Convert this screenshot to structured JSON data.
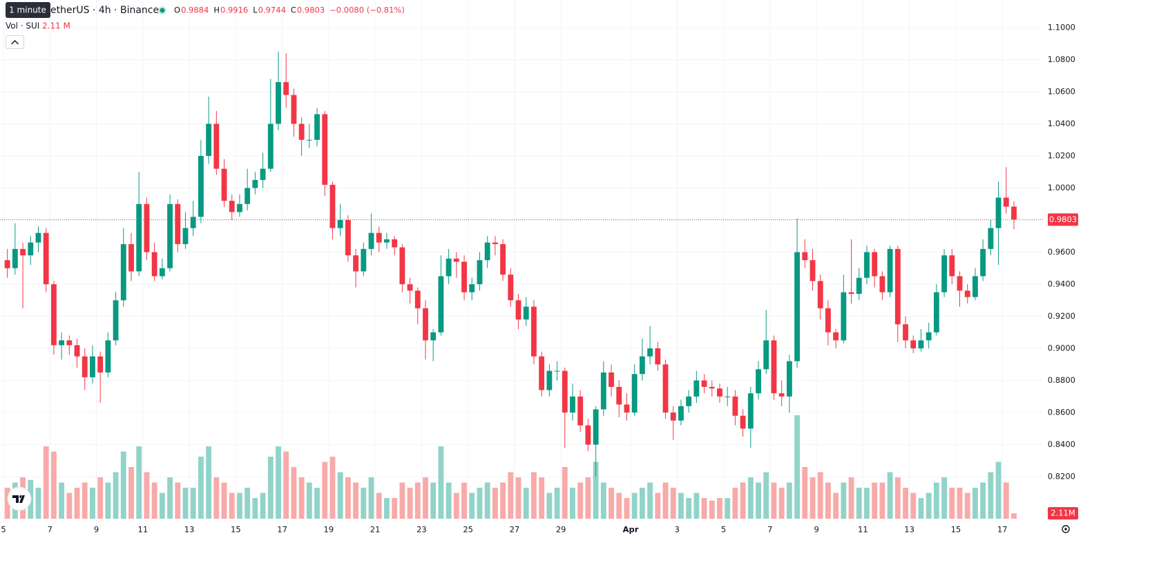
{
  "chart_data": {
    "type": "candlestick",
    "title": "etherUS · 4h · Binance",
    "tooltip": "1 minute",
    "ohlc_legend": [
      "O",
      "0.9884",
      "H",
      "0.9916",
      "L",
      "0.9744",
      "C",
      "0.9803",
      "−0.0080 (−0.81%)"
    ],
    "volume_title": "Vol · SUI",
    "volume_title_value": "2.11 M",
    "up_color": "#089981",
    "down_color": "#f23645",
    "volume_up_color": "#92d3c9",
    "volume_down_color": "#f8aaa9",
    "grid": true,
    "last_price": 0.9803,
    "last_volume_label": "2.11M",
    "xlim": [
      -0.95,
      133.75
    ],
    "xticks": [
      {
        "value": -0.5,
        "label": "5"
      },
      {
        "value": 5.5,
        "label": "7"
      },
      {
        "value": 11.5,
        "label": "9"
      },
      {
        "value": 17.5,
        "label": "11"
      },
      {
        "value": 23.5,
        "label": "13"
      },
      {
        "value": 29.5,
        "label": "15"
      },
      {
        "value": 35.5,
        "label": "17"
      },
      {
        "value": 41.5,
        "label": "19"
      },
      {
        "value": 47.5,
        "label": "21"
      },
      {
        "value": 53.5,
        "label": "23"
      },
      {
        "value": 59.5,
        "label": "25"
      },
      {
        "value": 65.5,
        "label": "27"
      },
      {
        "value": 71.5,
        "label": "29"
      },
      {
        "value": 80.5,
        "label": "Apr"
      },
      {
        "value": 86.5,
        "label": "3"
      },
      {
        "value": 92.5,
        "label": "5"
      },
      {
        "value": 98.5,
        "label": "7"
      },
      {
        "value": 104.5,
        "label": "9"
      },
      {
        "value": 110.5,
        "label": "11"
      },
      {
        "value": 116.5,
        "label": "13"
      },
      {
        "value": 122.5,
        "label": "15"
      },
      {
        "value": 128.5,
        "label": "17"
      }
    ],
    "ylim": [
      0.7925,
      1.1172
    ],
    "yticks": [
      {
        "value": 0.82,
        "label": "0.8200"
      },
      {
        "value": 0.84,
        "label": "0.8400"
      },
      {
        "value": 0.86,
        "label": "0.8600"
      },
      {
        "value": 0.88,
        "label": "0.8800"
      },
      {
        "value": 0.9,
        "label": "0.9000"
      },
      {
        "value": 0.92,
        "label": "0.9200"
      },
      {
        "value": 0.94,
        "label": "0.9400"
      },
      {
        "value": 0.96,
        "label": "0.9600"
      },
      {
        "value": 0.98,
        "label": "0.9800"
      },
      {
        "value": 1.0,
        "label": "1.0000"
      },
      {
        "value": 1.02,
        "label": "1.0200"
      },
      {
        "value": 1.04,
        "label": "1.0400"
      },
      {
        "value": 1.06,
        "label": "1.0600"
      },
      {
        "value": 1.08,
        "label": "1.0800"
      },
      {
        "value": 1.1,
        "label": "1.1000"
      }
    ],
    "volume_lim": [
      0,
      48
    ],
    "candles": [
      [
        0.955,
        0.962,
        0.944,
        0.95
      ],
      [
        0.95,
        0.978,
        0.946,
        0.962
      ],
      [
        0.962,
        0.966,
        0.925,
        0.958
      ],
      [
        0.958,
        0.97,
        0.952,
        0.966
      ],
      [
        0.966,
        0.976,
        0.96,
        0.972
      ],
      [
        0.972,
        0.975,
        0.935,
        0.94
      ],
      [
        0.94,
        0.942,
        0.896,
        0.902
      ],
      [
        0.902,
        0.91,
        0.893,
        0.905
      ],
      [
        0.905,
        0.908,
        0.896,
        0.902
      ],
      [
        0.902,
        0.906,
        0.888,
        0.895
      ],
      [
        0.895,
        0.9,
        0.874,
        0.882
      ],
      [
        0.882,
        0.902,
        0.878,
        0.895
      ],
      [
        0.895,
        0.898,
        0.866,
        0.885
      ],
      [
        0.885,
        0.91,
        0.882,
        0.905
      ],
      [
        0.905,
        0.935,
        0.902,
        0.93
      ],
      [
        0.93,
        0.975,
        0.926,
        0.965
      ],
      [
        0.965,
        0.972,
        0.942,
        0.948
      ],
      [
        0.948,
        1.01,
        0.945,
        0.99
      ],
      [
        0.99,
        0.994,
        0.955,
        0.96
      ],
      [
        0.96,
        0.966,
        0.942,
        0.945
      ],
      [
        0.945,
        0.956,
        0.943,
        0.95
      ],
      [
        0.95,
        0.996,
        0.948,
        0.99
      ],
      [
        0.99,
        0.993,
        0.96,
        0.965
      ],
      [
        0.965,
        0.985,
        0.962,
        0.975
      ],
      [
        0.975,
        0.992,
        0.97,
        0.982
      ],
      [
        0.982,
        1.03,
        0.978,
        1.02
      ],
      [
        1.02,
        1.057,
        1.015,
        1.04
      ],
      [
        1.04,
        1.048,
        1.008,
        1.012
      ],
      [
        1.012,
        1.018,
        0.988,
        0.992
      ],
      [
        0.992,
        0.996,
        0.98,
        0.985
      ],
      [
        0.985,
        0.996,
        0.982,
        0.99
      ],
      [
        0.99,
        1.012,
        0.986,
        1.0
      ],
      [
        1.0,
        1.01,
        0.996,
        1.005
      ],
      [
        1.005,
        1.022,
        1.0,
        1.012
      ],
      [
        1.012,
        1.068,
        1.01,
        1.04
      ],
      [
        1.04,
        1.085,
        1.036,
        1.066
      ],
      [
        1.066,
        1.084,
        1.05,
        1.058
      ],
      [
        1.058,
        1.062,
        1.032,
        1.04
      ],
      [
        1.04,
        1.044,
        1.02,
        1.03
      ],
      [
        1.03,
        1.04,
        1.025,
        1.03
      ],
      [
        1.03,
        1.05,
        1.026,
        1.046
      ],
      [
        1.046,
        1.048,
        0.995,
        1.002
      ],
      [
        1.002,
        1.004,
        0.968,
        0.975
      ],
      [
        0.975,
        0.99,
        0.97,
        0.98
      ],
      [
        0.98,
        0.983,
        0.954,
        0.958
      ],
      [
        0.958,
        0.962,
        0.938,
        0.948
      ],
      [
        0.948,
        0.966,
        0.945,
        0.962
      ],
      [
        0.962,
        0.984,
        0.958,
        0.972
      ],
      [
        0.972,
        0.976,
        0.96,
        0.966
      ],
      [
        0.966,
        0.972,
        0.962,
        0.968
      ],
      [
        0.968,
        0.97,
        0.958,
        0.963
      ],
      [
        0.963,
        0.965,
        0.935,
        0.94
      ],
      [
        0.94,
        0.944,
        0.928,
        0.936
      ],
      [
        0.936,
        0.938,
        0.915,
        0.925
      ],
      [
        0.925,
        0.93,
        0.893,
        0.905
      ],
      [
        0.905,
        0.912,
        0.892,
        0.91
      ],
      [
        0.91,
        0.958,
        0.908,
        0.945
      ],
      [
        0.945,
        0.962,
        0.94,
        0.956
      ],
      [
        0.956,
        0.96,
        0.944,
        0.954
      ],
      [
        0.954,
        0.958,
        0.93,
        0.935
      ],
      [
        0.935,
        0.944,
        0.93,
        0.94
      ],
      [
        0.94,
        0.96,
        0.936,
        0.955
      ],
      [
        0.955,
        0.97,
        0.95,
        0.966
      ],
      [
        0.966,
        0.97,
        0.958,
        0.965
      ],
      [
        0.965,
        0.968,
        0.942,
        0.946
      ],
      [
        0.946,
        0.95,
        0.926,
        0.93
      ],
      [
        0.93,
        0.934,
        0.912,
        0.918
      ],
      [
        0.918,
        0.932,
        0.914,
        0.926
      ],
      [
        0.926,
        0.93,
        0.89,
        0.895
      ],
      [
        0.895,
        0.898,
        0.87,
        0.874
      ],
      [
        0.874,
        0.89,
        0.87,
        0.886
      ],
      [
        0.886,
        0.892,
        0.88,
        0.886
      ],
      [
        0.886,
        0.888,
        0.838,
        0.86
      ],
      [
        0.86,
        0.878,
        0.855,
        0.87
      ],
      [
        0.87,
        0.874,
        0.848,
        0.852
      ],
      [
        0.852,
        0.856,
        0.836,
        0.84
      ],
      [
        0.84,
        0.864,
        0.82,
        0.862
      ],
      [
        0.862,
        0.892,
        0.858,
        0.885
      ],
      [
        0.885,
        0.89,
        0.87,
        0.876
      ],
      [
        0.876,
        0.88,
        0.857,
        0.865
      ],
      [
        0.865,
        0.872,
        0.855,
        0.86
      ],
      [
        0.86,
        0.89,
        0.858,
        0.884
      ],
      [
        0.884,
        0.906,
        0.88,
        0.895
      ],
      [
        0.895,
        0.914,
        0.89,
        0.9
      ],
      [
        0.9,
        0.904,
        0.886,
        0.89
      ],
      [
        0.89,
        0.893,
        0.856,
        0.86
      ],
      [
        0.86,
        0.864,
        0.843,
        0.855
      ],
      [
        0.855,
        0.868,
        0.852,
        0.864
      ],
      [
        0.864,
        0.874,
        0.86,
        0.87
      ],
      [
        0.87,
        0.886,
        0.866,
        0.88
      ],
      [
        0.88,
        0.884,
        0.872,
        0.876
      ],
      [
        0.876,
        0.88,
        0.87,
        0.875
      ],
      [
        0.875,
        0.878,
        0.866,
        0.87
      ],
      [
        0.87,
        0.876,
        0.864,
        0.87
      ],
      [
        0.87,
        0.874,
        0.852,
        0.858
      ],
      [
        0.858,
        0.862,
        0.845,
        0.85
      ],
      [
        0.85,
        0.876,
        0.838,
        0.872
      ],
      [
        0.872,
        0.892,
        0.868,
        0.887
      ],
      [
        0.887,
        0.924,
        0.884,
        0.905
      ],
      [
        0.905,
        0.908,
        0.868,
        0.872
      ],
      [
        0.872,
        0.88,
        0.864,
        0.87
      ],
      [
        0.87,
        0.896,
        0.86,
        0.892
      ],
      [
        0.892,
        0.981,
        0.888,
        0.96
      ],
      [
        0.96,
        0.968,
        0.95,
        0.955
      ],
      [
        0.955,
        0.962,
        0.936,
        0.942
      ],
      [
        0.942,
        0.946,
        0.918,
        0.925
      ],
      [
        0.925,
        0.93,
        0.902,
        0.91
      ],
      [
        0.91,
        0.912,
        0.9,
        0.905
      ],
      [
        0.905,
        0.946,
        0.903,
        0.935
      ],
      [
        0.935,
        0.968,
        0.928,
        0.934
      ],
      [
        0.934,
        0.95,
        0.93,
        0.944
      ],
      [
        0.944,
        0.964,
        0.94,
        0.96
      ],
      [
        0.96,
        0.962,
        0.938,
        0.945
      ],
      [
        0.945,
        0.948,
        0.93,
        0.935
      ],
      [
        0.935,
        0.964,
        0.932,
        0.962
      ],
      [
        0.962,
        0.964,
        0.904,
        0.915
      ],
      [
        0.915,
        0.92,
        0.9,
        0.905
      ],
      [
        0.905,
        0.908,
        0.897,
        0.9
      ],
      [
        0.9,
        0.912,
        0.898,
        0.905
      ],
      [
        0.905,
        0.916,
        0.9,
        0.91
      ],
      [
        0.91,
        0.94,
        0.908,
        0.935
      ],
      [
        0.935,
        0.962,
        0.932,
        0.958
      ],
      [
        0.958,
        0.962,
        0.94,
        0.945
      ],
      [
        0.945,
        0.948,
        0.926,
        0.936
      ],
      [
        0.936,
        0.94,
        0.928,
        0.932
      ],
      [
        0.932,
        0.95,
        0.93,
        0.945
      ],
      [
        0.945,
        0.968,
        0.942,
        0.962
      ],
      [
        0.962,
        0.98,
        0.958,
        0.975
      ],
      [
        0.975,
        1.004,
        0.952,
        0.994
      ],
      [
        0.994,
        1.013,
        0.984,
        0.9884
      ],
      [
        0.9884,
        0.9916,
        0.9744,
        0.9803
      ]
    ],
    "volume": [
      12,
      14,
      16,
      15,
      12,
      28,
      26,
      14,
      10,
      12,
      14,
      12,
      16,
      14,
      18,
      26,
      20,
      28,
      18,
      14,
      10,
      16,
      14,
      12,
      12,
      24,
      28,
      16,
      14,
      10,
      10,
      12,
      8,
      10,
      24,
      28,
      26,
      20,
      16,
      14,
      12,
      22,
      24,
      18,
      16,
      14,
      12,
      16,
      10,
      8,
      8,
      14,
      12,
      14,
      16,
      14,
      28,
      14,
      10,
      14,
      10,
      12,
      14,
      12,
      14,
      18,
      16,
      12,
      18,
      16,
      10,
      12,
      20,
      12,
      14,
      16,
      22,
      14,
      12,
      10,
      8,
      10,
      12,
      14,
      10,
      14,
      12,
      10,
      8,
      10,
      8,
      7,
      8,
      8,
      12,
      14,
      16,
      14,
      18,
      14,
      12,
      14,
      40,
      20,
      16,
      18,
      14,
      10,
      14,
      16,
      12,
      12,
      14,
      14,
      18,
      16,
      12,
      10,
      8,
      10,
      14,
      16,
      12,
      12,
      10,
      12,
      14,
      18,
      22,
      14,
      2.11
    ]
  }
}
